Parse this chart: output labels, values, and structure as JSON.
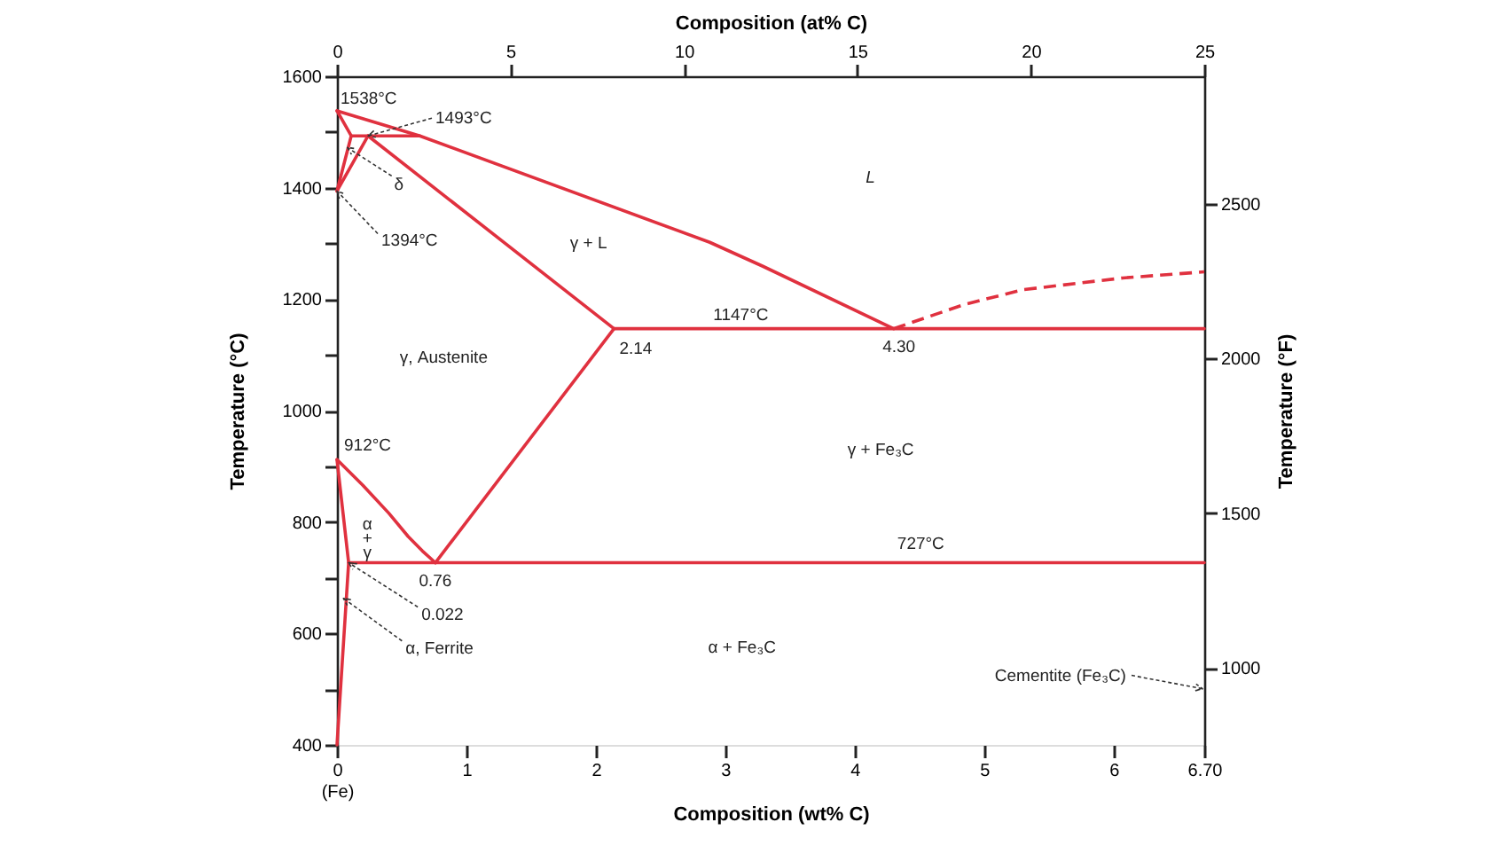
{
  "chart_data": {
    "type": "line",
    "line_style": "solid",
    "xlabel": "Composition (wt% C)",
    "x2label": "Composition (at% C)",
    "ylabel": "Temperature (°C)",
    "y2label": "Temperature (°F)",
    "xlim": [
      0,
      6.7
    ],
    "xticks": [
      {
        "value": 0,
        "label": "0\n(Fe)"
      },
      1,
      2,
      3,
      4,
      5,
      6,
      {
        "value": 6.7,
        "label": "6.70"
      }
    ],
    "x2lim": [
      0,
      25
    ],
    "x2ticks": [
      0,
      5,
      10,
      15,
      20,
      25
    ],
    "ylim": [
      400,
      1600
    ],
    "yticks": [
      400,
      {
        "value": 500,
        "label": null
      },
      600,
      {
        "value": 700,
        "label": null
      },
      800,
      {
        "value": 900,
        "label": null
      },
      1000,
      {
        "value": 1100,
        "label": null
      },
      1200,
      {
        "value": 1300,
        "label": null
      },
      1400,
      {
        "value": 1500,
        "label": null
      },
      1600
    ],
    "y2lim": [
      752,
      2912
    ],
    "y2ticks": [
      1000,
      1500,
      2000,
      2500
    ],
    "series": [
      {
        "color": "#e0313f",
        "x": [
          0,
          0.64,
          2.88,
          3.29,
          4.3
        ],
        "values": [
          1538,
          1493,
          1302,
          1259,
          1147
        ]
      },
      {
        "color": "#e0313f",
        "line_style": "dashed",
        "x": [
          4.3,
          4.84,
          5.3,
          6.07,
          6.7
        ],
        "values": [
          1147,
          1190,
          1217,
          1238,
          1249
        ]
      },
      {
        "color": "#e0313f",
        "x": [
          0,
          0.11
        ],
        "values": [
          1538,
          1493
        ]
      },
      {
        "color": "#e0313f",
        "x": [
          0.11,
          0.64
        ],
        "values": [
          1493,
          1493
        ]
      },
      {
        "color": "#e0313f",
        "x": [
          0.11,
          0
        ],
        "values": [
          1493,
          1394
        ]
      },
      {
        "color": "#e0313f",
        "x": [
          0,
          0.24
        ],
        "values": [
          1394,
          1493
        ]
      },
      {
        "color": "#e0313f",
        "x": [
          0.24,
          2.14
        ],
        "values": [
          1493,
          1147
        ]
      },
      {
        "color": "#e0313f",
        "x": [
          2.14,
          6.7
        ],
        "values": [
          1147,
          1147
        ]
      },
      {
        "color": "#e0313f",
        "x": [
          2.14,
          0.76
        ],
        "values": [
          1147,
          727
        ]
      },
      {
        "color": "#e0313f",
        "x": [
          0,
          0.2,
          0.4,
          0.55,
          0.66,
          0.76
        ],
        "values": [
          912,
          866,
          816,
          774,
          748,
          727
        ]
      },
      {
        "color": "#e0313f",
        "x": [
          0.09,
          6.7
        ],
        "values": [
          727,
          727
        ]
      },
      {
        "color": "#e0313f",
        "x": [
          0,
          0.09,
          0
        ],
        "values": [
          912,
          727,
          400
        ]
      }
    ],
    "annotations": [
      {
        "text": "1538°C",
        "x": 0,
        "y": 1538
      },
      {
        "text": "1493°C",
        "x": 0.24,
        "y": 1493
      },
      {
        "text": "δ",
        "x": 0.08,
        "y": 1472
      },
      {
        "text": "1394°C",
        "x": 0,
        "y": 1394
      },
      {
        "text": "1147°C",
        "x": 3.12,
        "y": 1147
      },
      {
        "text": "2.14",
        "x": 2.14,
        "y": 1147
      },
      {
        "text": "4.30",
        "x": 4.3,
        "y": 1147
      },
      "γ, Austenite",
      "γ + L",
      "L",
      {
        "text": "912°C",
        "x": 0,
        "y": 912
      },
      "α + γ",
      {
        "text": "0.76",
        "x": 0.76,
        "y": 727
      },
      {
        "text": "0.022",
        "x": 0.09,
        "y": 727
      },
      {
        "text": "α, Ferrite",
        "x": 0.05,
        "y": 663
      },
      "γ + Fe₃C",
      {
        "text": "727°C",
        "x": 4.51,
        "y": 727
      },
      "α + Fe₃C",
      "Cementite (Fe₃C)"
    ]
  }
}
